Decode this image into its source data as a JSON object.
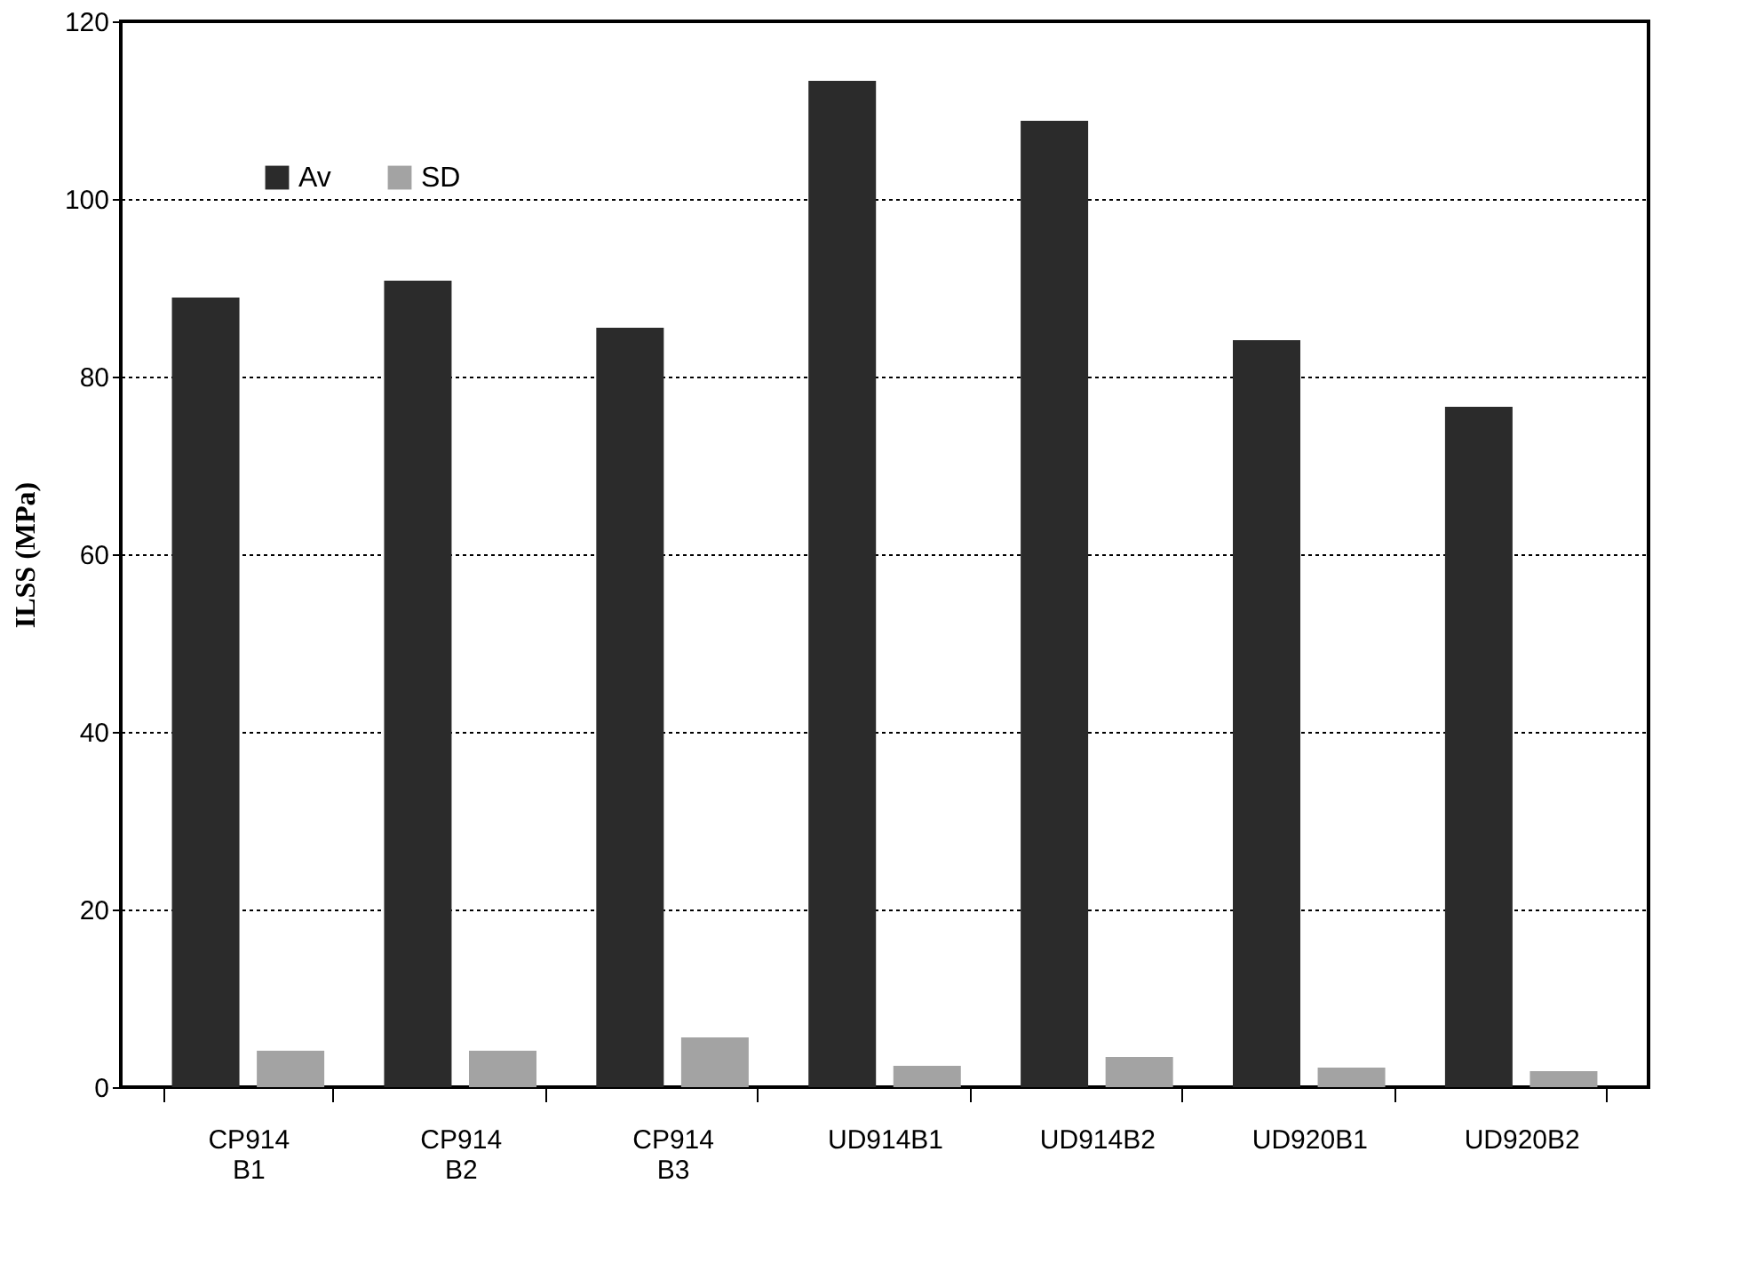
{
  "chart_data": {
    "type": "bar",
    "ylabel": "ILSS (MPa)",
    "categories": [
      "CP914 B1",
      "CP914 B2",
      "CP914 B3",
      "UD914B1",
      "UD914B2",
      "UD920B1",
      "UD920B2"
    ],
    "series": [
      {
        "name": "Av",
        "color": "#2b2b2b",
        "values": [
          88.9,
          90.8,
          85.5,
          113.3,
          108.8,
          84.1,
          76.6
        ]
      },
      {
        "name": "SD",
        "color": "#a3a3a3",
        "values": [
          4.1,
          4.1,
          5.6,
          2.4,
          3.4,
          2.2,
          1.8
        ]
      }
    ],
    "ylim": [
      0,
      120
    ],
    "yticks": [
      0,
      20,
      40,
      60,
      80,
      100,
      120
    ],
    "grid": "y",
    "legend": "top left"
  }
}
